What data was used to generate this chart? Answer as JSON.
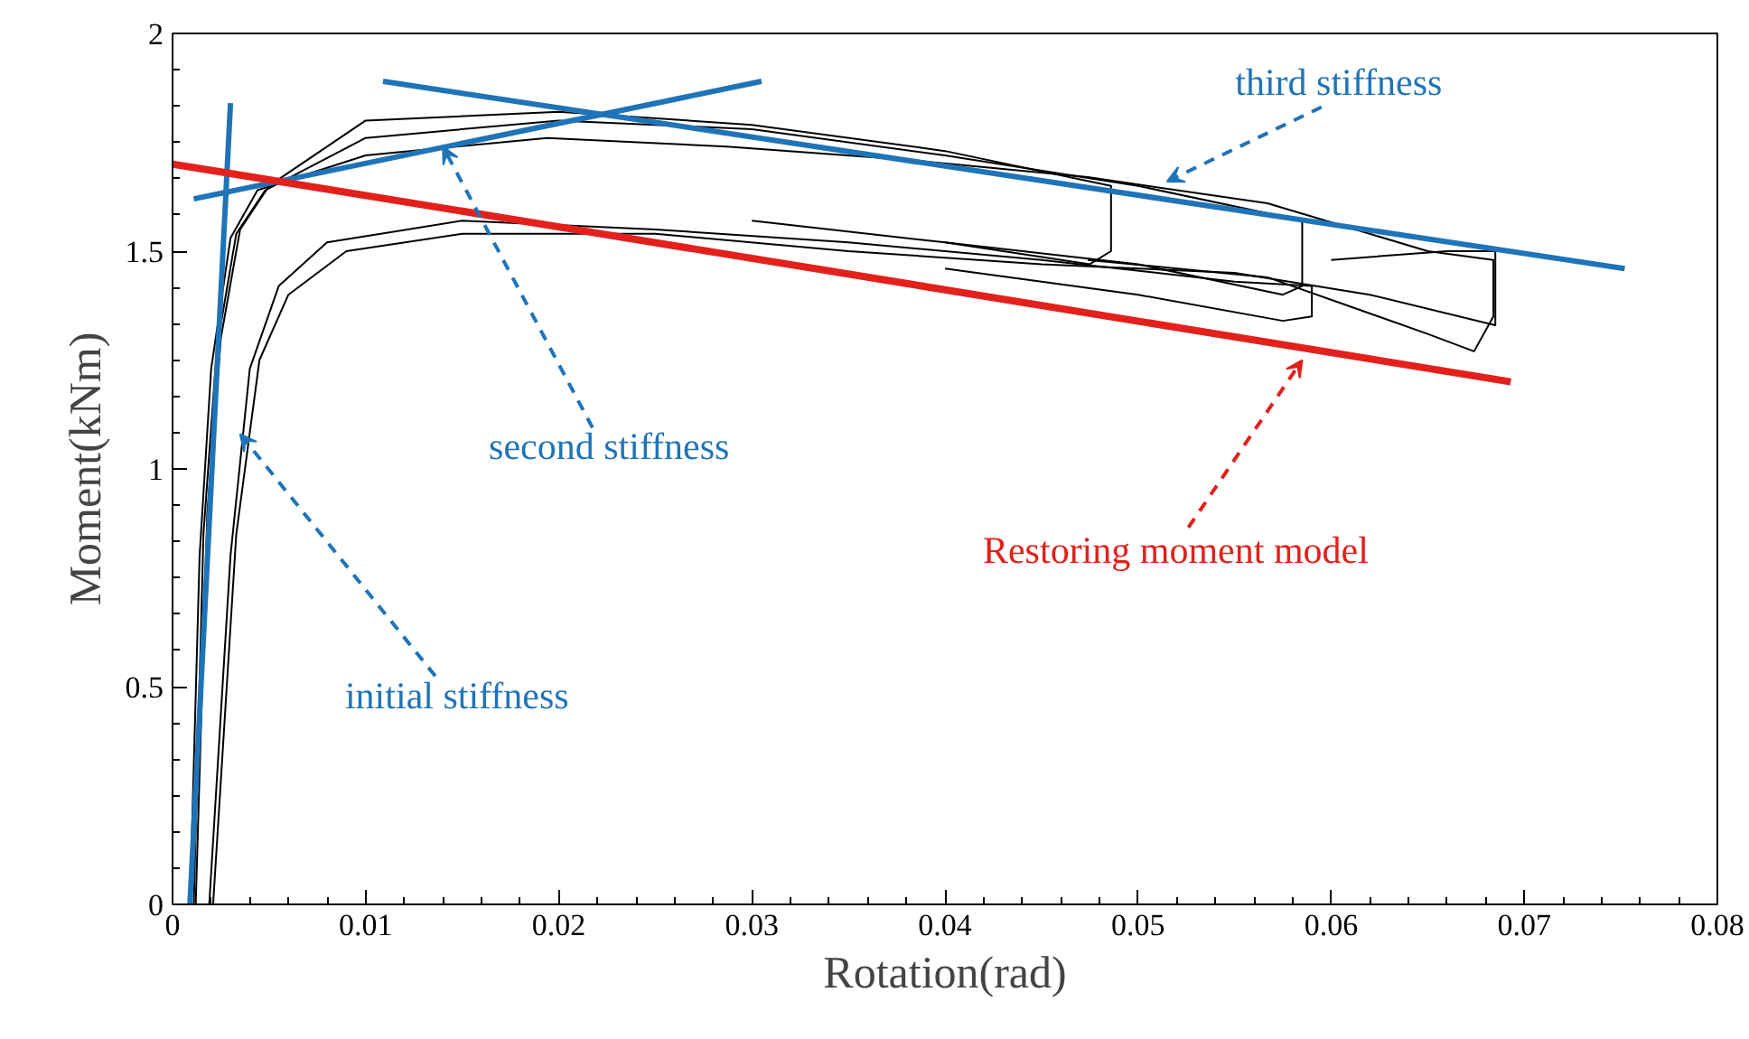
{
  "chart_data": {
    "type": "line",
    "xlabel": "Rotation(rad)",
    "ylabel": "Moment(kNm)",
    "xlim": [
      0,
      0.08
    ],
    "ylim": [
      0,
      2
    ],
    "xticks": [
      0,
      0.01,
      0.02,
      0.03,
      0.04,
      0.05,
      0.06,
      0.07,
      0.08
    ],
    "yticks": [
      0,
      0.5,
      1,
      1.5,
      2
    ],
    "grid": false,
    "marker": "none",
    "line_style": "solid",
    "series": [
      {
        "color": "#000000",
        "x": [
          0.0009,
          0.0014,
          0.002,
          0.003,
          0.0044,
          0.01,
          0.0194,
          0.0287,
          0.038,
          0.0474,
          0.0567,
          0.065,
          0.0684,
          0.0684,
          0.0674,
          0.065,
          0.0567,
          0.0474
        ],
        "values": [
          0,
          0.8,
          1.23,
          1.53,
          1.64,
          1.72,
          1.76,
          1.74,
          1.71,
          1.67,
          1.61,
          1.5,
          1.48,
          1.35,
          1.27,
          1.31,
          1.44,
          1.48
        ]
      },
      {
        "color": "#000000",
        "x": [
          0.0012,
          0.0018,
          0.0025,
          0.0035,
          0.005,
          0.01,
          0.02,
          0.03,
          0.04,
          0.0486,
          0.0486,
          0.0475,
          0.04,
          0.03
        ],
        "values": [
          0,
          0.9,
          1.3,
          1.55,
          1.65,
          1.8,
          1.82,
          1.79,
          1.73,
          1.65,
          1.5,
          1.47,
          1.52,
          1.57
        ]
      },
      {
        "color": "#000000",
        "x": [
          0.0011,
          0.0016,
          0.0023,
          0.0033,
          0.0048,
          0.01,
          0.02,
          0.03,
          0.04,
          0.05,
          0.0585,
          0.0585,
          0.0575,
          0.05,
          0.04
        ],
        "values": [
          0,
          0.85,
          1.28,
          1.54,
          1.64,
          1.76,
          1.8,
          1.78,
          1.72,
          1.65,
          1.57,
          1.42,
          1.4,
          1.47,
          1.52
        ]
      },
      {
        "color": "#000000",
        "x": [
          0.0019,
          0.003,
          0.004,
          0.0055,
          0.008,
          0.015,
          0.025,
          0.035,
          0.045,
          0.055,
          0.059,
          0.059,
          0.0575,
          0.05,
          0.04
        ],
        "values": [
          0,
          0.8,
          1.23,
          1.42,
          1.52,
          1.57,
          1.55,
          1.52,
          1.48,
          1.43,
          1.42,
          1.35,
          1.34,
          1.4,
          1.46
        ]
      },
      {
        "color": "#000000",
        "x": [
          0.0021,
          0.0033,
          0.0045,
          0.006,
          0.009,
          0.015,
          0.025,
          0.035,
          0.045,
          0.055,
          0.062,
          0.0685,
          0.0685,
          0.066,
          0.06
        ],
        "values": [
          0,
          0.85,
          1.25,
          1.4,
          1.5,
          1.54,
          1.54,
          1.5,
          1.47,
          1.45,
          1.4,
          1.33,
          1.5,
          1.5,
          1.48
        ]
      },
      {
        "color": "#1f74b8",
        "x": [
          0.0009,
          0.003
        ],
        "values": [
          0,
          1.84
        ]
      },
      {
        "color": "#1f74b8",
        "x": [
          0.0011,
          0.0305
        ],
        "values": [
          1.62,
          1.89
        ]
      },
      {
        "color": "#1f74b8",
        "x": [
          0.0109,
          0.0752
        ],
        "values": [
          1.89,
          1.46
        ]
      },
      {
        "color": "#e3201b",
        "x": [
          0,
          0.0693
        ],
        "values": [
          1.7,
          1.2
        ]
      }
    ],
    "annotations": [
      {
        "text": "initial stiffness",
        "x": 0.0035,
        "y": 1.08
      },
      {
        "text": "second stiffness",
        "x": 0.014,
        "y": 1.74
      },
      {
        "text": "third stiffness",
        "x": 0.0515,
        "y": 1.66
      },
      {
        "text": "Restoring moment model",
        "x": 0.0585,
        "y": 1.25
      }
    ]
  }
}
